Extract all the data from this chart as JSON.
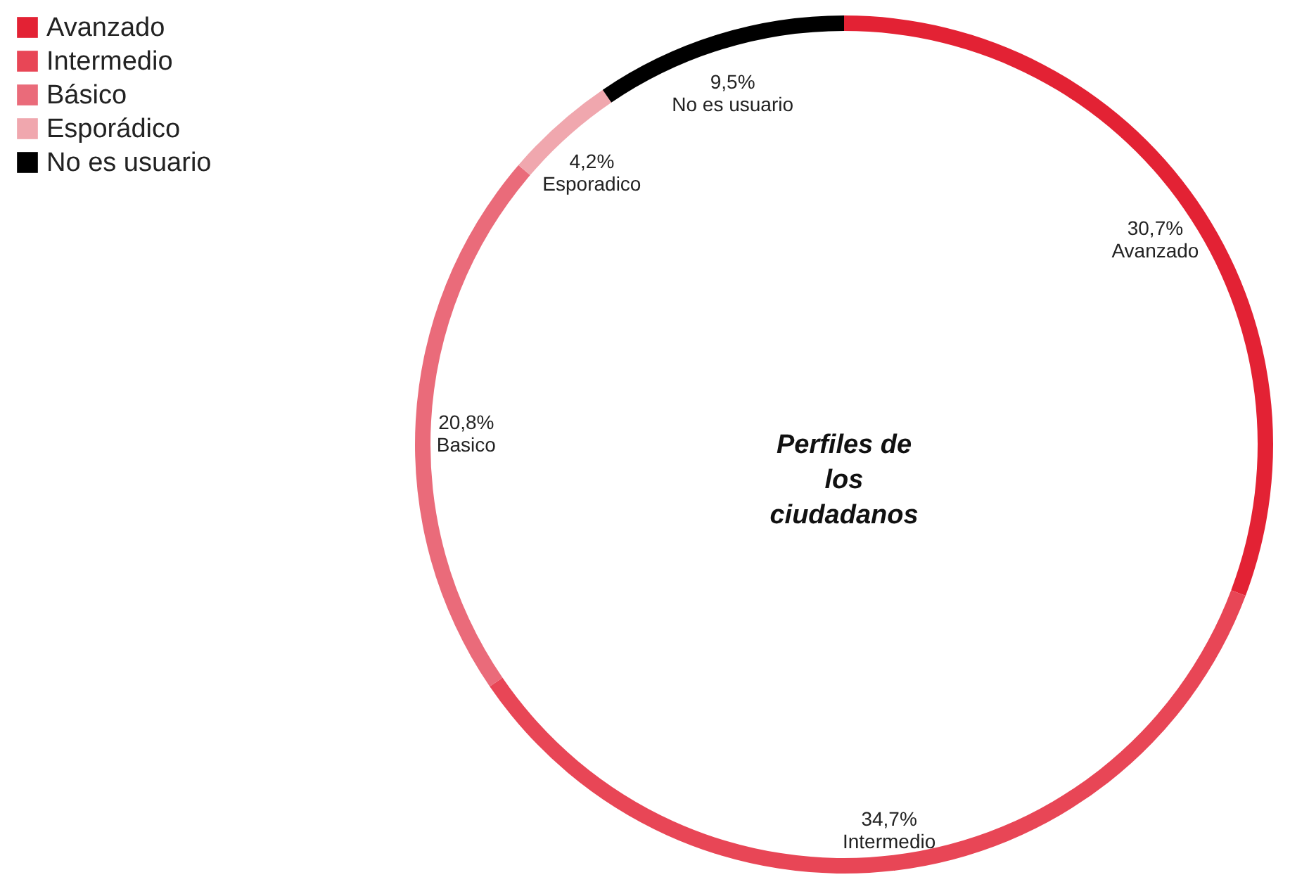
{
  "chart_data": {
    "type": "donut",
    "title": "Perfiles de los ciudadanos",
    "categories": [
      "Avanzado",
      "Intermedio",
      "Básico",
      "Esporádico",
      "No es usuario"
    ],
    "values": [
      30.7,
      34.7,
      20.8,
      4.2,
      9.5
    ],
    "colors": [
      "#e32234",
      "#e84656",
      "#ea6b7a",
      "#f0a7ae",
      "#000000"
    ],
    "value_labels": [
      "30,7%\nAvanzado",
      "34,7%\nIntermedio",
      "20,8%\nBasico",
      "4,2%\nEsporadico",
      "9,5%\nNo es usuario"
    ],
    "legend": "top left"
  }
}
